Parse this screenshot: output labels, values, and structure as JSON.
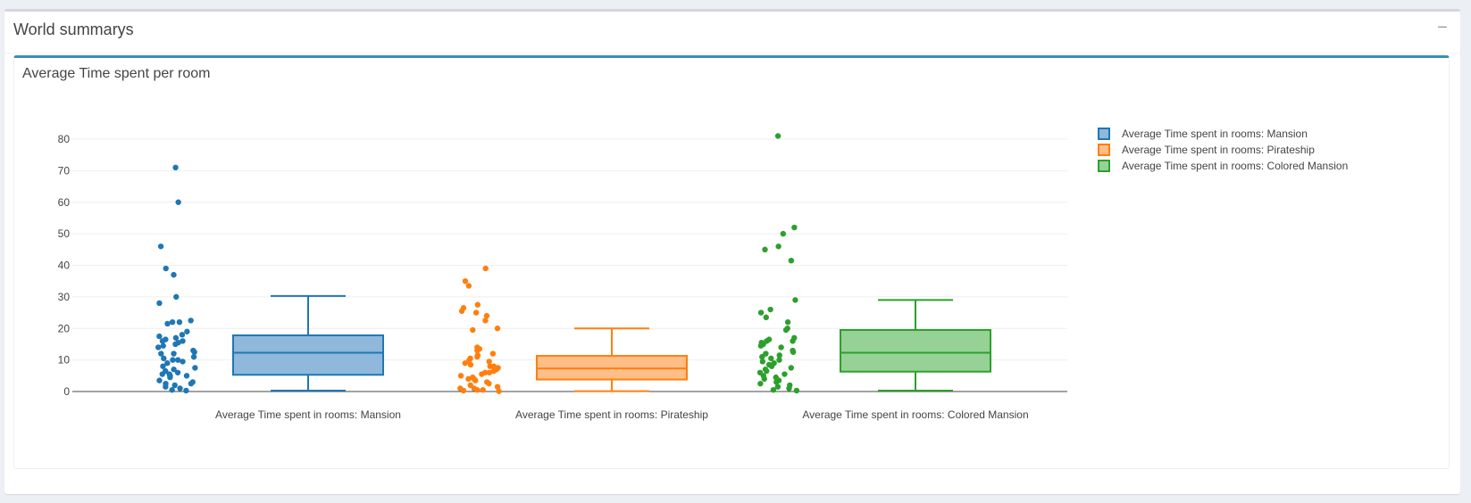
{
  "panel": {
    "title": "World summarys",
    "collapse_symbol": "−"
  },
  "chart_data": {
    "type": "box",
    "title": "Average Time spent per room",
    "xlabel": "",
    "ylabel": "",
    "ylim": [
      0,
      82
    ],
    "yticks": [
      0,
      10,
      20,
      30,
      40,
      50,
      60,
      70,
      80
    ],
    "grid": true,
    "legend_position": "top-right",
    "series": [
      {
        "name": "Average Time spent in rooms: Mansion",
        "color": "#1f77b4",
        "fill": "#8fb8db",
        "box": {
          "min": 0.3,
          "q1": 5.3,
          "median": 12.3,
          "q3": 17.8,
          "max": 30.3
        },
        "points": [
          71,
          60,
          46,
          39,
          37,
          30,
          28,
          22.5,
          22,
          22,
          21.5,
          19,
          18,
          17.5,
          17,
          16.5,
          16,
          16,
          15.5,
          15,
          14.5,
          14,
          13,
          12.5,
          12,
          12,
          11,
          10.5,
          10,
          10,
          9.5,
          9,
          8,
          7.5,
          7,
          6.5,
          6,
          5.5,
          5.5,
          5,
          5,
          4.5,
          3.5,
          3,
          2.5,
          2.5,
          2,
          1.5,
          1,
          0.5,
          0.3
        ]
      },
      {
        "name": "Average Time spent in rooms: Pirateship",
        "color": "#ff7f0e",
        "fill": "#ffbe87",
        "box": {
          "min": 0.1,
          "q1": 3.8,
          "median": 7.3,
          "q3": 11.3,
          "max": 20
        },
        "points": [
          39,
          35,
          33.5,
          27.5,
          26.5,
          25.5,
          25,
          24,
          22.5,
          20,
          19.5,
          14,
          13.5,
          13,
          12,
          11.5,
          11,
          10.5,
          10,
          9.5,
          9,
          8.5,
          8,
          8,
          7.5,
          7,
          6.5,
          6,
          6,
          5.5,
          5,
          4.5,
          4,
          4,
          3.5,
          3,
          2.5,
          2,
          1.5,
          1,
          1,
          0.5,
          0.5,
          0.3,
          0.1
        ]
      },
      {
        "name": "Average Time spent in rooms: Colored Mansion",
        "color": "#2ca02c",
        "fill": "#96d296",
        "box": {
          "min": 0.3,
          "q1": 6.3,
          "median": 12.3,
          "q3": 19.5,
          "max": 29
        },
        "points": [
          81,
          52,
          50,
          46,
          45,
          41.5,
          29,
          26,
          25,
          23.5,
          22,
          20,
          19.5,
          17,
          16.5,
          16,
          16,
          15.5,
          15,
          14.5,
          14,
          13,
          12.5,
          12,
          11.5,
          11,
          10.5,
          10,
          9.5,
          9,
          8.5,
          8,
          7.5,
          7,
          6.5,
          6,
          5.5,
          5,
          4.5,
          4,
          3.5,
          3,
          2.5,
          2,
          1.5,
          1,
          0.5,
          0.3
        ]
      }
    ]
  }
}
